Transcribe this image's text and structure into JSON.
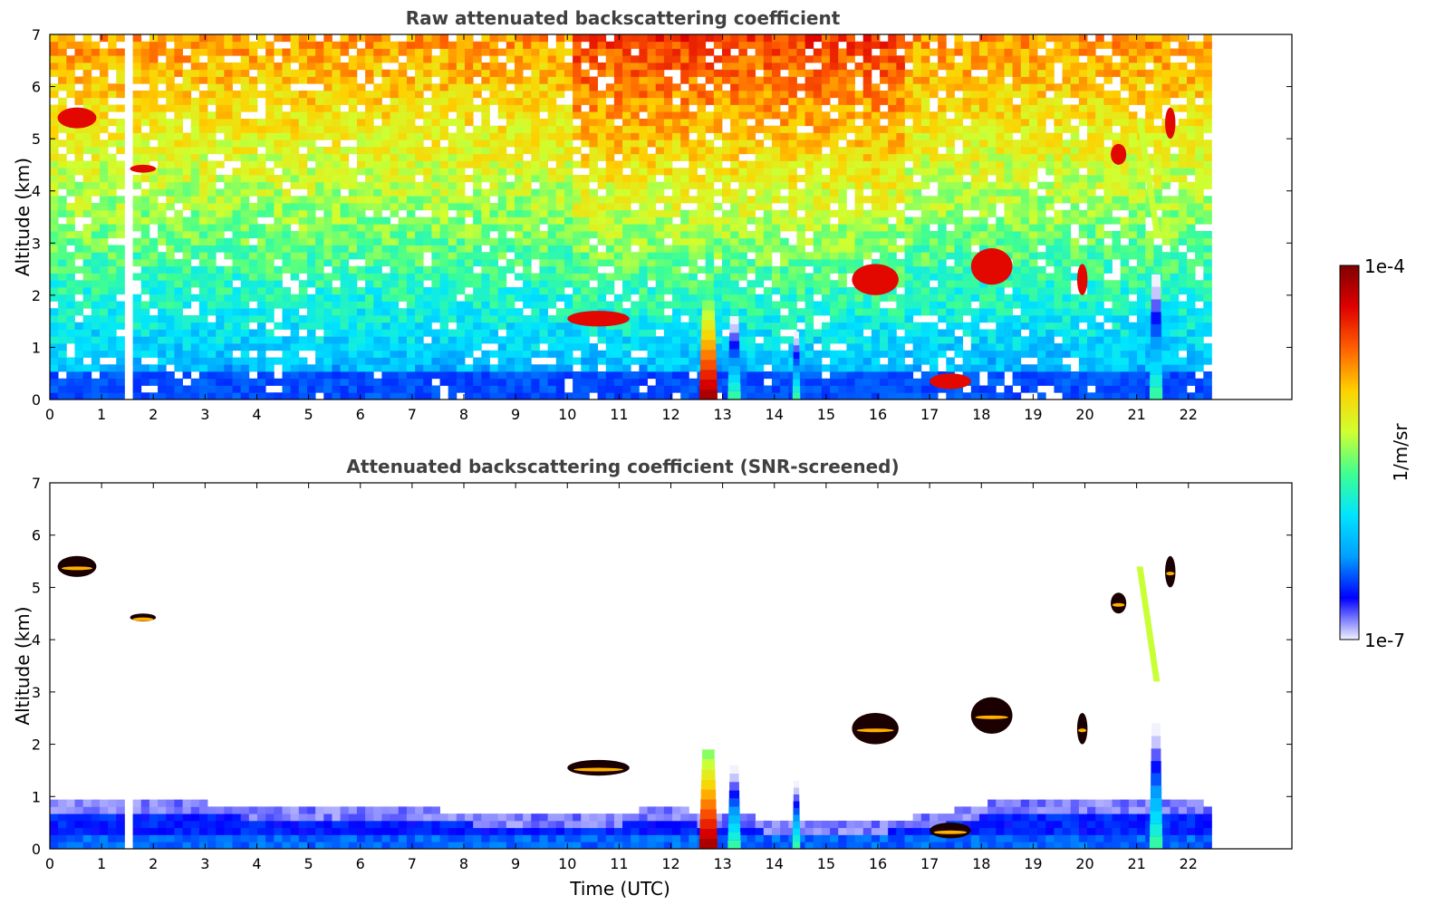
{
  "chart_data": [
    {
      "type": "heatmap",
      "title": "Raw attenuated backscattering coefficient",
      "xlabel": "",
      "ylabel": "Altitude (km)",
      "xlim": [
        0,
        24
      ],
      "ylim": [
        0,
        7
      ],
      "x_ticks": [
        "0",
        "1",
        "2",
        "3",
        "4",
        "5",
        "6",
        "7",
        "8",
        "9",
        "10",
        "11",
        "12",
        "13",
        "14",
        "15",
        "16",
        "17",
        "18",
        "19",
        "20",
        "21",
        "22"
      ],
      "y_ticks": [
        "0",
        "1",
        "2",
        "3",
        "4",
        "5",
        "6",
        "7"
      ],
      "data_end_time": 22.45,
      "data_gaps": [
        [
          1.45,
          1.55
        ]
      ],
      "features": [
        {
          "kind": "cloud",
          "t": [
            0.15,
            0.9
          ],
          "alt": [
            5.2,
            5.6
          ],
          "level": "high"
        },
        {
          "kind": "cloud",
          "t": [
            1.55,
            2.05
          ],
          "alt": [
            4.35,
            4.5
          ],
          "level": "high"
        },
        {
          "kind": "cloud",
          "t": [
            10.0,
            11.2
          ],
          "alt": [
            1.4,
            1.7
          ],
          "level": "high"
        },
        {
          "kind": "plume",
          "t": [
            12.55,
            12.9
          ],
          "alt": [
            0,
            1.9
          ],
          "level": "very high"
        },
        {
          "kind": "plume",
          "t": [
            13.1,
            13.35
          ],
          "alt": [
            0,
            1.6
          ],
          "level": "medium"
        },
        {
          "kind": "plume",
          "t": [
            14.35,
            14.5
          ],
          "alt": [
            0,
            1.3
          ],
          "level": "medium"
        },
        {
          "kind": "cloud",
          "t": [
            15.5,
            16.4
          ],
          "alt": [
            2.0,
            2.6
          ],
          "level": "high"
        },
        {
          "kind": "cloud",
          "t": [
            17.0,
            17.8
          ],
          "alt": [
            0.2,
            0.5
          ],
          "level": "high"
        },
        {
          "kind": "cloud",
          "t": [
            17.8,
            18.6
          ],
          "alt": [
            2.2,
            2.9
          ],
          "level": "high"
        },
        {
          "kind": "cloud",
          "t": [
            19.85,
            20.05
          ],
          "alt": [
            2.0,
            2.6
          ],
          "level": "high"
        },
        {
          "kind": "cloud",
          "t": [
            20.5,
            20.8
          ],
          "alt": [
            4.5,
            4.9
          ],
          "level": "high"
        },
        {
          "kind": "fallstreak",
          "t": [
            21.0,
            21.45
          ],
          "alt": [
            3.2,
            5.4
          ],
          "level": "medium-high"
        },
        {
          "kind": "plume",
          "t": [
            21.25,
            21.5
          ],
          "alt": [
            0,
            2.4
          ],
          "level": "medium"
        },
        {
          "kind": "cloud",
          "t": [
            21.55,
            21.75
          ],
          "alt": [
            5.0,
            5.6
          ],
          "level": "high"
        }
      ]
    },
    {
      "type": "heatmap",
      "title": "Attenuated backscattering coefficient (SNR-screened)",
      "xlabel": "Time (UTC)",
      "ylabel": "Altitude (km)",
      "xlim": [
        0,
        24
      ],
      "ylim": [
        0,
        7
      ],
      "x_ticks": [
        "0",
        "1",
        "2",
        "3",
        "4",
        "5",
        "6",
        "7",
        "8",
        "9",
        "10",
        "11",
        "12",
        "13",
        "14",
        "15",
        "16",
        "17",
        "18",
        "19",
        "20",
        "21",
        "22"
      ],
      "y_ticks": [
        "0",
        "1",
        "2",
        "3",
        "4",
        "5",
        "6",
        "7"
      ],
      "data_end_time": 22.45,
      "data_gaps": [
        [
          1.45,
          1.55
        ]
      ],
      "boundary_layer_top_km": [
        [
          0,
          0.9
        ],
        [
          9.9,
          0.6
        ],
        [
          12.0,
          0.7
        ],
        [
          14.5,
          0.45
        ],
        [
          16.9,
          0.55
        ],
        [
          18.5,
          0.9
        ],
        [
          20.5,
          0.9
        ],
        [
          22.45,
          0.8
        ]
      ]
    }
  ],
  "colorbar": {
    "label": "1/m/sr",
    "min_label": "1e-7",
    "max_label": "1e-4",
    "scale": "log",
    "colormap": "jet",
    "stops": [
      "#f2f2ff",
      "#0000ff",
      "#00a0ff",
      "#00e5ff",
      "#40ff90",
      "#d0ff30",
      "#ffd000",
      "#ff6000",
      "#e00000",
      "#800000"
    ]
  }
}
